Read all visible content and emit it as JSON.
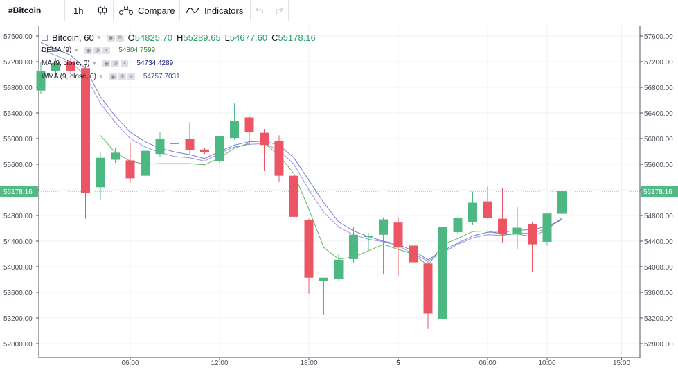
{
  "toolbar": {
    "symbol": "#Bitcoin",
    "interval": "1h",
    "compare_label": "Compare",
    "indicators_label": "Indicators"
  },
  "legend": {
    "title": "Bitcoin, 60",
    "o_key": "O",
    "o_val": "54825.70",
    "h_key": "H",
    "h_val": "55289.65",
    "l_key": "L",
    "l_val": "54677.60",
    "c_key": "C",
    "c_val": "55178.16",
    "dema_label": "DEMA (9)",
    "dema_val": "54804.7599",
    "ma_label": "MA (9, close, 0)",
    "ma_val": "54734.4289",
    "wma_label": "WMA (9, close, 0)",
    "wma_val": "54757.7031"
  },
  "colors": {
    "up": "#4db882",
    "down": "#ed5565",
    "dema": "#4caf50",
    "ma": "#3f51b5",
    "wma": "#7b68ee",
    "last_price": "#53b987"
  },
  "chart_data": {
    "type": "candlestick",
    "title": "Bitcoin, 60",
    "ylim": [
      52600,
      57700
    ],
    "y_ticks": [
      "57600.00",
      "57200.00",
      "56800.00",
      "56400.00",
      "56000.00",
      "55600.00",
      "55200.00",
      "54800.00",
      "54400.00",
      "54000.00",
      "53600.00",
      "53200.00",
      "52800.00"
    ],
    "x_ticks": [
      {
        "label": "06:00",
        "i": 6
      },
      {
        "label": "12:00",
        "i": 12
      },
      {
        "label": "18:00",
        "i": 18
      },
      {
        "label": "5",
        "i": 24
      },
      {
        "label": "06:00",
        "i": 30
      },
      {
        "label": "10:00",
        "i": 34
      },
      {
        "label": "15:00",
        "i": 39
      }
    ],
    "last_price": 55178.16,
    "last_price_label": "55178.16",
    "candles": [
      {
        "o": 56750,
        "h": 57200,
        "l": 56700,
        "c": 57050
      },
      {
        "o": 57050,
        "h": 57250,
        "l": 56950,
        "c": 57180
      },
      {
        "o": 57200,
        "h": 57250,
        "l": 57000,
        "c": 57060
      },
      {
        "o": 57100,
        "h": 57160,
        "l": 54750,
        "c": 55150
      },
      {
        "o": 55240,
        "h": 55780,
        "l": 55050,
        "c": 55700
      },
      {
        "o": 55670,
        "h": 55860,
        "l": 55620,
        "c": 55780
      },
      {
        "o": 55660,
        "h": 55940,
        "l": 55310,
        "c": 55380
      },
      {
        "o": 55420,
        "h": 55880,
        "l": 55200,
        "c": 55810
      },
      {
        "o": 55760,
        "h": 56100,
        "l": 55720,
        "c": 55990
      },
      {
        "o": 55920,
        "h": 56000,
        "l": 55870,
        "c": 55930
      },
      {
        "o": 55990,
        "h": 56260,
        "l": 55760,
        "c": 55820
      },
      {
        "o": 55830,
        "h": 55850,
        "l": 55760,
        "c": 55790
      },
      {
        "o": 55650,
        "h": 56040,
        "l": 55620,
        "c": 56040
      },
      {
        "o": 56010,
        "h": 56550,
        "l": 55980,
        "c": 56270
      },
      {
        "o": 56330,
        "h": 56350,
        "l": 55900,
        "c": 56100
      },
      {
        "o": 56090,
        "h": 56150,
        "l": 55490,
        "c": 55900
      },
      {
        "o": 55960,
        "h": 56050,
        "l": 55330,
        "c": 55420
      },
      {
        "o": 55420,
        "h": 55480,
        "l": 54370,
        "c": 54780
      },
      {
        "o": 54730,
        "h": 54750,
        "l": 53580,
        "c": 53830
      },
      {
        "o": 53780,
        "h": 53800,
        "l": 53250,
        "c": 53830
      },
      {
        "o": 53810,
        "h": 54200,
        "l": 53780,
        "c": 54110
      },
      {
        "o": 54120,
        "h": 54620,
        "l": 54060,
        "c": 54500
      },
      {
        "o": 54470,
        "h": 54530,
        "l": 54260,
        "c": 54480
      },
      {
        "o": 54500,
        "h": 54770,
        "l": 53880,
        "c": 54740
      },
      {
        "o": 54690,
        "h": 54780,
        "l": 53860,
        "c": 54300
      },
      {
        "o": 54330,
        "h": 54370,
        "l": 54010,
        "c": 54070
      },
      {
        "o": 54050,
        "h": 54100,
        "l": 53030,
        "c": 53270
      },
      {
        "o": 53180,
        "h": 54840,
        "l": 52890,
        "c": 54620
      },
      {
        "o": 54540,
        "h": 54780,
        "l": 54510,
        "c": 54760
      },
      {
        "o": 54700,
        "h": 55170,
        "l": 54650,
        "c": 55000
      },
      {
        "o": 55020,
        "h": 55250,
        "l": 54750,
        "c": 54760
      },
      {
        "o": 54750,
        "h": 55230,
        "l": 54380,
        "c": 54510
      },
      {
        "o": 54520,
        "h": 54930,
        "l": 54280,
        "c": 54610
      },
      {
        "o": 54660,
        "h": 54700,
        "l": 53920,
        "c": 54350
      },
      {
        "o": 54390,
        "h": 54830,
        "l": 54330,
        "c": 54830
      },
      {
        "o": 54826,
        "h": 55290,
        "l": 54678,
        "c": 55178
      }
    ],
    "series": [
      {
        "name": "DEMA (9)",
        "values": [
          null,
          null,
          null,
          null,
          56050,
          55780,
          55650,
          55600,
          55610,
          55610,
          55610,
          55590,
          55700,
          55850,
          55930,
          55930,
          55740,
          55450,
          54900,
          54300,
          54120,
          54150,
          54250,
          54350,
          54270,
          54200,
          54020,
          54350,
          54440,
          54550,
          54560,
          54500,
          54510,
          54470,
          54580,
          54760
        ]
      },
      {
        "name": "MA (9, close, 0)",
        "values": [
          57500,
          57400,
          57300,
          57100,
          56650,
          56350,
          56100,
          55950,
          55850,
          55790,
          55750,
          55690,
          55800,
          55900,
          55950,
          55960,
          55900,
          55700,
          55350,
          55000,
          54700,
          54560,
          54470,
          54400,
          54350,
          54250,
          54110,
          54250,
          54370,
          54480,
          54540,
          54540,
          54570,
          54580,
          54630,
          54735
        ]
      },
      {
        "name": "WMA (9, close, 0)",
        "values": [
          57380,
          57300,
          57200,
          56980,
          56550,
          56250,
          56000,
          55870,
          55780,
          55720,
          55700,
          55650,
          55770,
          55870,
          55910,
          55920,
          55820,
          55600,
          55200,
          54850,
          54620,
          54500,
          54430,
          54390,
          54330,
          54200,
          54090,
          54220,
          54350,
          54450,
          54500,
          54490,
          54530,
          54520,
          54600,
          54758
        ]
      }
    ]
  }
}
